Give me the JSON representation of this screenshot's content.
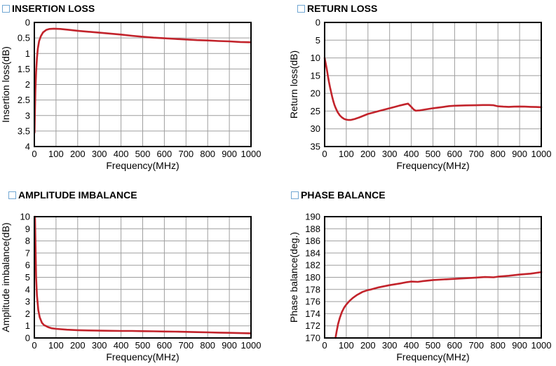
{
  "page": {
    "background": "#ffffff"
  },
  "colors": {
    "curve": "#c2232b",
    "grid": "#9e9e9e",
    "frame": "#000000",
    "title_square": "#72a7d3",
    "text": "#000000"
  },
  "chart_data": [
    {
      "id": "insertion-loss",
      "type": "line",
      "title": "INSERTION LOSS",
      "xlabel": "Frequency(MHz)",
      "ylabel": "Insertion loss(dB)",
      "xlim": [
        0,
        1000
      ],
      "ylim": [
        0,
        4
      ],
      "y_inverted": true,
      "grid": true,
      "legend": "none",
      "xticks": [
        0,
        100,
        200,
        300,
        400,
        500,
        600,
        700,
        800,
        900,
        1000
      ],
      "yticks": [
        0,
        0.5,
        1,
        1.5,
        2,
        2.5,
        3,
        3.5,
        4
      ],
      "series": [
        {
          "name": "insertion-loss-curve",
          "x": [
            1,
            3,
            5,
            8,
            12,
            16,
            22,
            30,
            40,
            55,
            70,
            90,
            120,
            160,
            200,
            250,
            300,
            350,
            400,
            450,
            500,
            550,
            600,
            650,
            700,
            750,
            800,
            850,
            900,
            950,
            1000
          ],
          "y": [
            3.55,
            2.8,
            2.2,
            1.6,
            1.15,
            0.85,
            0.6,
            0.44,
            0.32,
            0.24,
            0.21,
            0.2,
            0.21,
            0.24,
            0.27,
            0.3,
            0.33,
            0.36,
            0.39,
            0.43,
            0.46,
            0.49,
            0.51,
            0.53,
            0.55,
            0.57,
            0.58,
            0.6,
            0.61,
            0.63,
            0.64
          ]
        }
      ]
    },
    {
      "id": "return-loss",
      "type": "line",
      "title": "RETURN LOSS",
      "xlabel": "Frequency(MHz)",
      "ylabel": "Return loss(dB)",
      "xlim": [
        0,
        1000
      ],
      "ylim": [
        0,
        35
      ],
      "y_inverted": true,
      "grid": true,
      "legend": "none",
      "xticks": [
        0,
        100,
        200,
        300,
        400,
        500,
        600,
        700,
        800,
        900,
        1000
      ],
      "yticks": [
        0,
        5,
        10,
        15,
        20,
        25,
        30,
        35
      ],
      "series": [
        {
          "name": "return-loss-curve",
          "x": [
            0,
            5,
            10,
            15,
            20,
            25,
            30,
            35,
            40,
            45,
            50,
            60,
            70,
            80,
            90,
            100,
            110,
            120,
            140,
            160,
            180,
            200,
            225,
            250,
            275,
            300,
            325,
            350,
            370,
            385,
            400,
            410,
            420,
            440,
            460,
            480,
            500,
            525,
            550,
            575,
            600,
            650,
            700,
            730,
            760,
            780,
            800,
            825,
            850,
            875,
            900,
            925,
            950,
            975,
            1000
          ],
          "y": [
            10,
            11.5,
            13.2,
            15,
            16.8,
            18.3,
            19.7,
            21,
            22.2,
            23.2,
            24,
            25.3,
            26.2,
            26.8,
            27.2,
            27.4,
            27.5,
            27.5,
            27.2,
            26.8,
            26.3,
            25.8,
            25.4,
            25,
            24.6,
            24.2,
            23.8,
            23.4,
            23.1,
            22.9,
            23.8,
            24.5,
            24.9,
            24.8,
            24.6,
            24.4,
            24.2,
            24,
            23.8,
            23.6,
            23.5,
            23.4,
            23.35,
            23.3,
            23.3,
            23.35,
            23.65,
            23.75,
            23.8,
            23.75,
            23.7,
            23.75,
            23.8,
            23.85,
            23.9
          ]
        }
      ]
    },
    {
      "id": "amplitude-imbalance",
      "type": "line",
      "title": "AMPLITUDE IMBALANCE",
      "xlabel": "Frequency(MHz)",
      "ylabel": "Amplitude imbalance(dB)",
      "xlim": [
        0,
        1000
      ],
      "ylim": [
        0,
        10
      ],
      "y_inverted": false,
      "grid": true,
      "legend": "none",
      "xticks": [
        0,
        100,
        200,
        300,
        400,
        500,
        600,
        700,
        800,
        900,
        1000
      ],
      "yticks": [
        0,
        1,
        2,
        3,
        4,
        5,
        6,
        7,
        8,
        9,
        10
      ],
      "series": [
        {
          "name": "amplitude-imbalance-curve",
          "x": [
            3,
            8,
            12,
            18,
            25,
            35,
            45,
            52,
            65,
            80,
            100,
            150,
            200,
            250,
            300,
            350,
            400,
            450,
            500,
            550,
            600,
            650,
            700,
            750,
            800,
            850,
            900,
            950,
            1000
          ],
          "y": [
            10,
            5,
            3.5,
            2.3,
            1.7,
            1.25,
            1.05,
            1.0,
            0.88,
            0.8,
            0.75,
            0.68,
            0.64,
            0.62,
            0.6,
            0.59,
            0.58,
            0.58,
            0.56,
            0.55,
            0.53,
            0.52,
            0.5,
            0.48,
            0.46,
            0.44,
            0.42,
            0.4,
            0.38
          ]
        }
      ]
    },
    {
      "id": "phase-balance",
      "type": "line",
      "title": "PHASE BALANCE",
      "xlabel": "Frequency(MHz)",
      "ylabel": "Phase balance(deg.)",
      "xlim": [
        0,
        1000
      ],
      "ylim": [
        170,
        190
      ],
      "y_inverted": false,
      "grid": true,
      "legend": "none",
      "xticks": [
        0,
        100,
        200,
        300,
        400,
        500,
        600,
        700,
        800,
        900,
        1000
      ],
      "yticks": [
        170,
        172,
        174,
        176,
        178,
        180,
        182,
        184,
        186,
        188,
        190
      ],
      "series": [
        {
          "name": "phase-balance-curve",
          "x": [
            50,
            55,
            62,
            70,
            80,
            90,
            100,
            115,
            130,
            150,
            175,
            200,
            215,
            250,
            300,
            350,
            380,
            400,
            430,
            450,
            500,
            550,
            600,
            650,
            700,
            740,
            780,
            800,
            850,
            900,
            950,
            1000
          ],
          "y": [
            170,
            171,
            172.3,
            173.3,
            174.3,
            175,
            175.5,
            176.1,
            176.6,
            177.1,
            177.6,
            177.9,
            178.0,
            178.35,
            178.7,
            179.0,
            179.2,
            179.3,
            179.25,
            179.35,
            179.55,
            179.65,
            179.75,
            179.85,
            179.95,
            180.05,
            180.0,
            180.1,
            180.25,
            180.45,
            180.6,
            180.85
          ]
        }
      ]
    }
  ]
}
